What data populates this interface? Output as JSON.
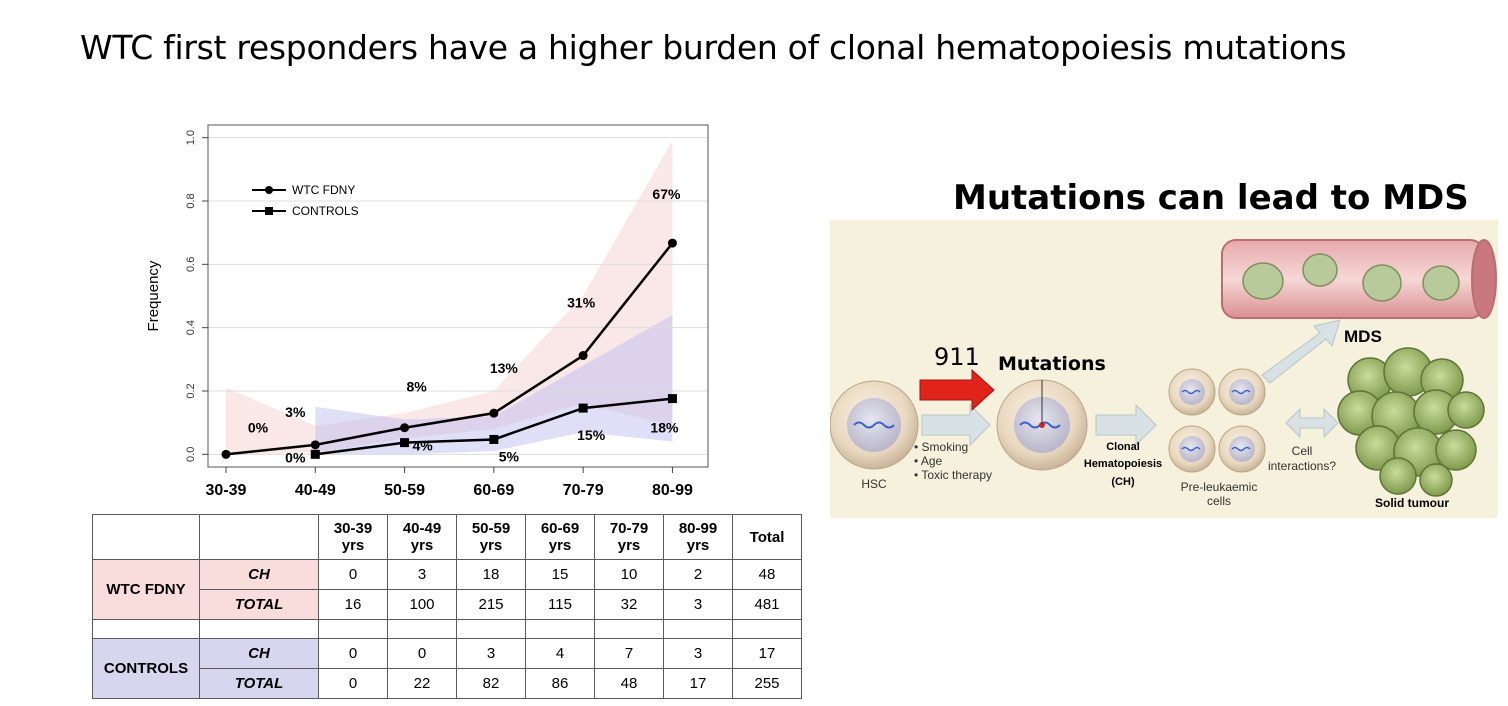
{
  "slide": {
    "title": "WTC first responders have a higher burden of clonal hematopoiesis mutations"
  },
  "chart_data": {
    "type": "line",
    "ylabel": "Frequency",
    "xlabel": "",
    "ylim": [
      0,
      1.0
    ],
    "yticks": [
      "0.0",
      "0.2",
      "0.4",
      "0.6",
      "0.8",
      "1.0"
    ],
    "categories": [
      "30-39",
      "40-49",
      "50-59",
      "60-69",
      "70-79",
      "80-99"
    ],
    "legend_position": "top-left",
    "series": [
      {
        "name": "WTC FDNY",
        "marker": "circle",
        "values": [
          0.0,
          0.03,
          0.084,
          0.13,
          0.312,
          0.667
        ],
        "labels": [
          "0%",
          "3%",
          "8%",
          "13%",
          "31%",
          "67%"
        ],
        "ci_lower": [
          0.0,
          0.005,
          0.05,
          0.08,
          0.16,
          0.09
        ],
        "ci_upper": [
          0.21,
          0.09,
          0.13,
          0.2,
          0.5,
          0.99
        ],
        "color": "#000000",
        "band_color": "#f5c9c9"
      },
      {
        "name": "CONTROLS",
        "marker": "square",
        "values": [
          null,
          0.0,
          0.037,
          0.047,
          0.146,
          0.176
        ],
        "labels": [
          "",
          "0%",
          "4%",
          "5%",
          "15%",
          "18%"
        ],
        "ci_lower": [
          null,
          0.0,
          0.0,
          0.01,
          0.07,
          0.04
        ],
        "ci_upper": [
          null,
          0.15,
          0.11,
          0.12,
          0.28,
          0.44
        ],
        "color": "#000000",
        "band_color": "#b8b8f0"
      }
    ]
  },
  "table": {
    "headers": [
      "30-39\nyrs",
      "40-49\nyrs",
      "50-59\nyrs",
      "60-69\nyrs",
      "70-79\nyrs",
      "80-99\nyrs",
      "Total"
    ],
    "groups": [
      {
        "name": "WTC FDNY",
        "rows": [
          {
            "label": "CH",
            "cells": [
              "0",
              "3",
              "18",
              "15",
              "10",
              "2",
              "48"
            ]
          },
          {
            "label": "TOTAL",
            "cells": [
              "16",
              "100",
              "215",
              "115",
              "32",
              "3",
              "481"
            ]
          }
        ]
      },
      {
        "name": "CONTROLS",
        "rows": [
          {
            "label": "CH",
            "cells": [
              "0",
              "0",
              "3",
              "4",
              "7",
              "3",
              "17"
            ]
          },
          {
            "label": "TOTAL",
            "cells": [
              "0",
              "22",
              "82",
              "86",
              "48",
              "17",
              "255"
            ]
          }
        ]
      }
    ]
  },
  "mds": {
    "heading": "Mutations can lead to MDS",
    "label_911": "911",
    "label_mutations": "Mutations",
    "label_mds": "MDS",
    "label_hsc": "HSC",
    "risk_factors": [
      "• Smoking",
      "• Age",
      "• Toxic therapy"
    ],
    "clonal_line1": "Clonal",
    "clonal_line2": "Hematopoiesis",
    "clonal_line3": "(CH)",
    "preleuk_line1": "Pre-leukaemic",
    "preleuk_line2": "cells",
    "cell_line1": "Cell",
    "cell_line2": "interactions?",
    "solid_tumour": "Solid tumour",
    "colors": {
      "panel_bg": "#f5f1dc",
      "arrow_red": "#e0241c",
      "vessel": "#d98f92"
    }
  }
}
